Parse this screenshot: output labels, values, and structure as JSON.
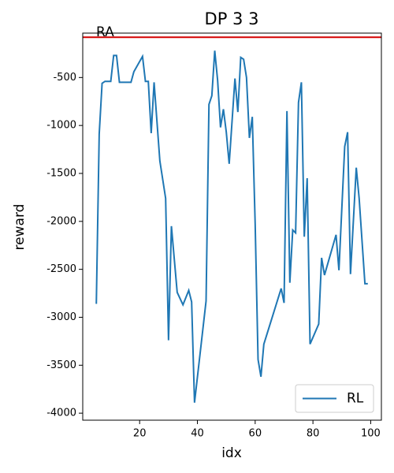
{
  "chart_data": {
    "type": "line",
    "title": "DP 3 3",
    "xlabel": "idx",
    "ylabel": "reward",
    "x": [
      5,
      6,
      7,
      8,
      10,
      11,
      12,
      13,
      17,
      18,
      21,
      22,
      23,
      24,
      25,
      27,
      29,
      30,
      31,
      33,
      35,
      37,
      38,
      39,
      43,
      44,
      45,
      46,
      47,
      48,
      49,
      50,
      51,
      53,
      54,
      55,
      56,
      57,
      58,
      59,
      60,
      61,
      62,
      63,
      69,
      70,
      71,
      72,
      73,
      74,
      75,
      76,
      77,
      78,
      79,
      82,
      83,
      84,
      88,
      89,
      91,
      92,
      93,
      95,
      96,
      98,
      99
    ],
    "series": [
      {
        "name": "RL",
        "color": "#1f77b4",
        "values": [
          -2860,
          -1090,
          -560,
          -540,
          -540,
          -270,
          -270,
          -550,
          -550,
          -440,
          -280,
          -540,
          -540,
          -1080,
          -550,
          -1370,
          -1760,
          -3240,
          -2050,
          -2740,
          -2870,
          -2720,
          -2840,
          -3890,
          -2830,
          -780,
          -690,
          -220,
          -530,
          -1020,
          -830,
          -1070,
          -1400,
          -510,
          -860,
          -290,
          -310,
          -500,
          -1130,
          -910,
          -2030,
          -3440,
          -3620,
          -3280,
          -2700,
          -2850,
          -850,
          -2640,
          -2090,
          -2120,
          -760,
          -550,
          -2160,
          -1550,
          -3280,
          -3070,
          -2380,
          -2560,
          -2140,
          -2510,
          -1220,
          -1070,
          -2550,
          -1440,
          -1760,
          -2650,
          -2650
        ]
      }
    ],
    "reference_line": {
      "label": "RA",
      "value": -80,
      "color": "#d40000"
    },
    "xlim": [
      0.3,
      103.7
    ],
    "ylim": [
      -4073,
      -37
    ],
    "xticks": [
      20,
      40,
      60,
      80,
      100
    ],
    "yticks": [
      -4000,
      -3500,
      -3000,
      -2500,
      -2000,
      -1500,
      -1000,
      -500
    ],
    "legend": "lower right"
  }
}
